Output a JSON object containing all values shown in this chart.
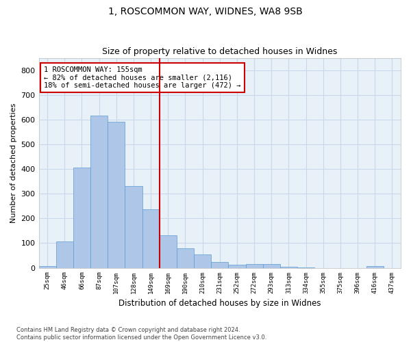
{
  "title1": "1, ROSCOMMON WAY, WIDNES, WA8 9SB",
  "title2": "Size of property relative to detached houses in Widnes",
  "xlabel": "Distribution of detached houses by size in Widnes",
  "ylabel": "Number of detached properties",
  "footnote": "Contains HM Land Registry data © Crown copyright and database right 2024.\nContains public sector information licensed under the Open Government Licence v3.0.",
  "bin_labels": [
    "25sqm",
    "46sqm",
    "66sqm",
    "87sqm",
    "107sqm",
    "128sqm",
    "149sqm",
    "169sqm",
    "190sqm",
    "210sqm",
    "231sqm",
    "252sqm",
    "272sqm",
    "293sqm",
    "313sqm",
    "334sqm",
    "355sqm",
    "375sqm",
    "396sqm",
    "416sqm",
    "437sqm"
  ],
  "bar_values": [
    7,
    107,
    405,
    615,
    592,
    330,
    237,
    133,
    78,
    55,
    25,
    12,
    15,
    15,
    4,
    1,
    0,
    0,
    0,
    8,
    0
  ],
  "bar_color": "#aec6e8",
  "bar_edge_color": "#5b9bd5",
  "vline_index": 6.5,
  "vline_color": "#cc0000",
  "annotation_text": "1 ROSCOMMON WAY: 155sqm\n← 82% of detached houses are smaller (2,116)\n18% of semi-detached houses are larger (472) →",
  "annotation_box_color": "#cc0000",
  "ylim": [
    0,
    850
  ],
  "yticks": [
    0,
    100,
    200,
    300,
    400,
    500,
    600,
    700,
    800
  ],
  "grid_color": "#c8d8e8",
  "bg_color": "#e8f0f8"
}
